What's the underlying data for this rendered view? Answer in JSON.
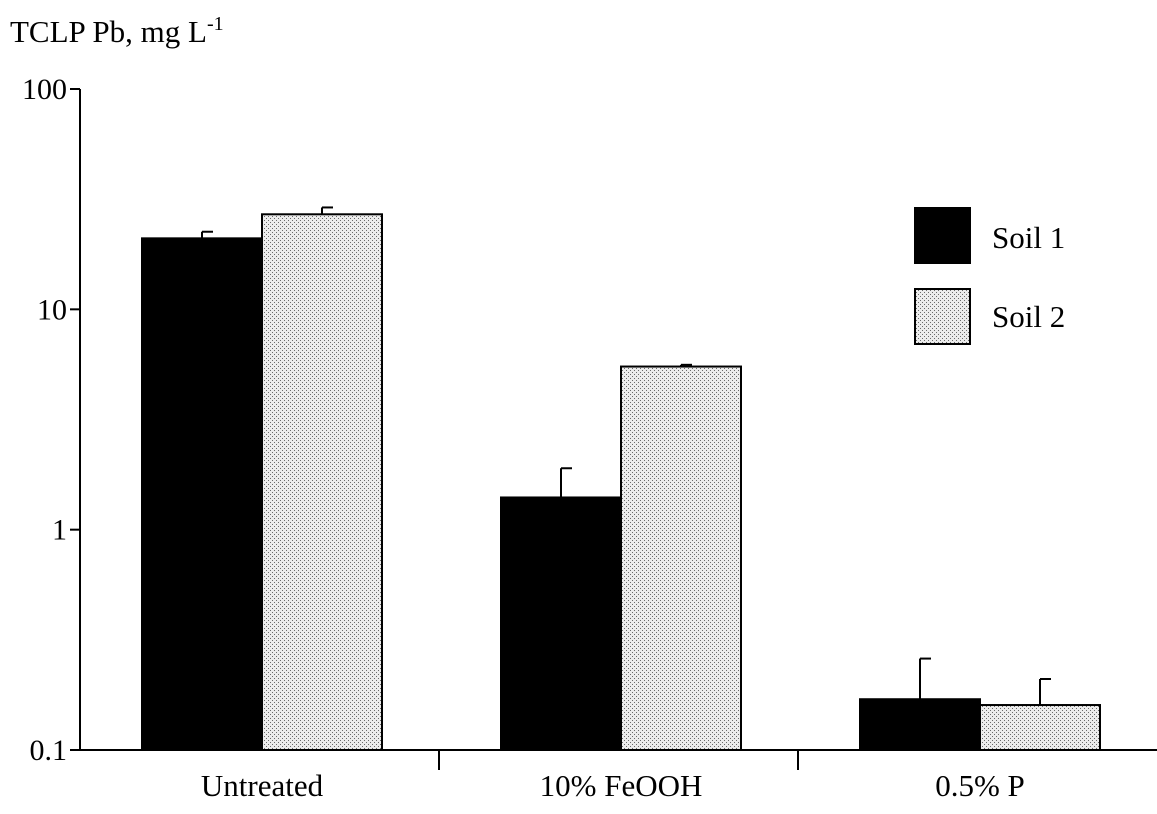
{
  "chart_data": {
    "type": "bar",
    "title": "",
    "xlabel": "",
    "ylabel": "TCLP Pb, mg L",
    "ylabel_superscript": "-1",
    "yscale": "log",
    "ylim": [
      0.1,
      100
    ],
    "yticks": [
      0.1,
      1,
      10,
      100
    ],
    "ytick_labels": [
      "0.1",
      "1",
      "10",
      "100"
    ],
    "categories": [
      "Untreated",
      "10% FeOOH",
      "0.5% P"
    ],
    "series": [
      {
        "name": "Soil 1",
        "color": "#000000",
        "pattern": "solid",
        "values": [
          21,
          1.4,
          0.17
        ],
        "errors": [
          1.5,
          0.5,
          0.09
        ]
      },
      {
        "name": "Soil 2",
        "color": "#d8d8d8",
        "pattern": "stipple",
        "values": [
          27,
          5.5,
          0.16
        ],
        "errors": [
          2,
          0.1,
          0.05
        ]
      }
    ],
    "legend": {
      "position": "top-right"
    },
    "grid": false
  }
}
